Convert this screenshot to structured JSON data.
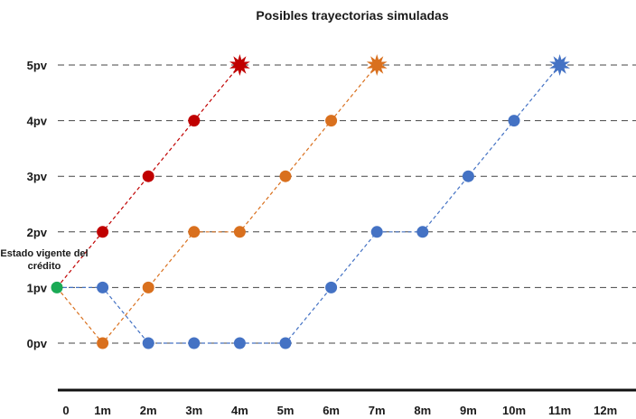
{
  "chart_data": {
    "type": "scatter",
    "title": "Posibles trayectorias simuladas",
    "xlabel": "",
    "ylabel": "",
    "x_categories": [
      "0",
      "1m",
      "2m",
      "3m",
      "4m",
      "5m",
      "6m",
      "7m",
      "8m",
      "9m",
      "10m",
      "11m",
      "12m"
    ],
    "y_categories": [
      "0pv",
      "1pv",
      "2pv",
      "3pv",
      "4pv",
      "5pv"
    ],
    "xlim": [
      0,
      12
    ],
    "ylim": [
      0,
      5
    ],
    "grid": "horizontal dashed lines at each y category",
    "annotations": [
      {
        "text_lines": [
          "Estado vigente del",
          "crédito"
        ],
        "x": 0,
        "y": 1
      }
    ],
    "start_point": {
      "x": 0,
      "y": 1,
      "color": "#1aaa55"
    },
    "series": [
      {
        "color": "#c00000",
        "points": [
          {
            "x": 0,
            "y": 1
          },
          {
            "x": 1,
            "y": 2
          },
          {
            "x": 2,
            "y": 3
          },
          {
            "x": 3,
            "y": 4
          },
          {
            "x": 4,
            "y": 5
          }
        ],
        "end_marker": "starburst"
      },
      {
        "color": "#d9701e",
        "points": [
          {
            "x": 0,
            "y": 1
          },
          {
            "x": 1,
            "y": 0
          },
          {
            "x": 2,
            "y": 1
          },
          {
            "x": 3,
            "y": 2
          },
          {
            "x": 4,
            "y": 2
          },
          {
            "x": 5,
            "y": 3
          },
          {
            "x": 6,
            "y": 4
          },
          {
            "x": 7,
            "y": 5
          }
        ],
        "end_marker": "starburst"
      },
      {
        "color": "#4472c4",
        "points": [
          {
            "x": 0,
            "y": 1
          },
          {
            "x": 1,
            "y": 1
          },
          {
            "x": 2,
            "y": 0
          },
          {
            "x": 3,
            "y": 0
          },
          {
            "x": 4,
            "y": 0
          },
          {
            "x": 5,
            "y": 0
          },
          {
            "x": 6,
            "y": 1
          },
          {
            "x": 7,
            "y": 2
          },
          {
            "x": 8,
            "y": 2
          },
          {
            "x": 9,
            "y": 3
          },
          {
            "x": 10,
            "y": 4
          },
          {
            "x": 11,
            "y": 5
          }
        ],
        "end_marker": "starburst"
      }
    ]
  }
}
